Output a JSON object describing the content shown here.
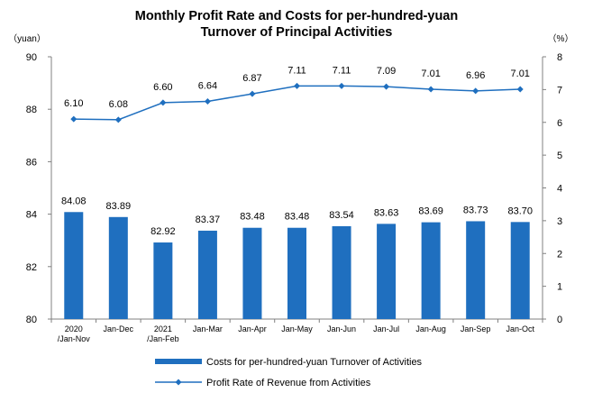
{
  "chart_data": {
    "type": "bar+line",
    "title_lines": [
      "Monthly Profit Rate and Costs for per-hundred-yuan",
      "Turnover of Principal Activities"
    ],
    "left_unit": "（yuan）",
    "right_unit": "（%）",
    "categories": [
      [
        "2020",
        "/Jan-Nov"
      ],
      [
        "Jan-Dec"
      ],
      [
        "2021",
        "/Jan-Feb"
      ],
      [
        "Jan-Mar"
      ],
      [
        "Jan-Apr"
      ],
      [
        "Jan-May"
      ],
      [
        "Jan-Jun"
      ],
      [
        "Jan-Jul"
      ],
      [
        "Jan-Aug"
      ],
      [
        "Jan-Sep"
      ],
      [
        "Jan-Oct"
      ]
    ],
    "left_axis": {
      "min": 80,
      "max": 90,
      "step": 2,
      "ticks": [
        "80",
        "82",
        "84",
        "86",
        "88",
        "90"
      ]
    },
    "right_axis": {
      "min": 0,
      "max": 8,
      "step": 1,
      "ticks": [
        "0",
        "1",
        "2",
        "3",
        "4",
        "5",
        "6",
        "7",
        "8"
      ]
    },
    "series": [
      {
        "name": "Costs for per-hundred-yuan Turnover of  Activities",
        "type": "bar",
        "axis": "left",
        "color": "#1f6fbf",
        "values": [
          84.08,
          83.89,
          82.92,
          83.37,
          83.48,
          83.48,
          83.54,
          83.63,
          83.69,
          83.73,
          83.7
        ],
        "labels": [
          "84.08",
          "83.89",
          "82.92",
          "83.37",
          "83.48",
          "83.48",
          "83.54",
          "83.63",
          "83.69",
          "83.73",
          "83.70"
        ]
      },
      {
        "name": "Profit Rate of Revenue from Activities",
        "type": "line",
        "axis": "right",
        "color": "#1f6fbf",
        "values": [
          6.1,
          6.08,
          6.6,
          6.64,
          6.87,
          7.11,
          7.11,
          7.09,
          7.01,
          6.96,
          7.01
        ],
        "labels": [
          "6.10",
          "6.08",
          "6.60",
          "6.64",
          "6.87",
          "7.11",
          "7.11",
          "7.09",
          "7.01",
          "6.96",
          "7.01"
        ]
      }
    ],
    "legend_position": "bottom"
  }
}
